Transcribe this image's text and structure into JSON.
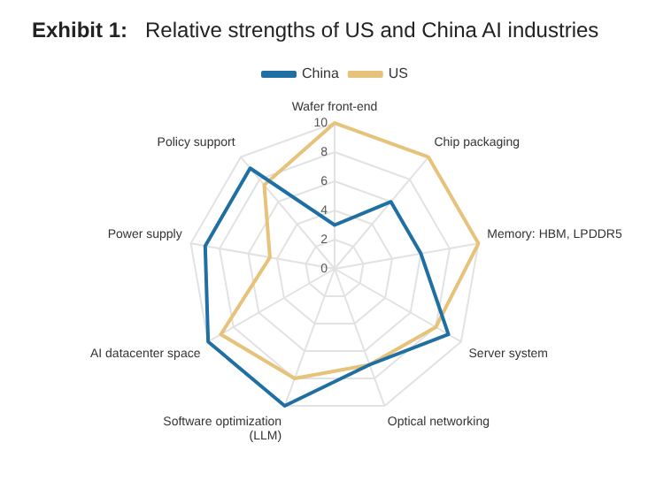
{
  "chart_data": {
    "type": "radar",
    "title": "Exhibit 1:   Relative strengths of US and China AI industries",
    "categories": [
      "Wafer front-end",
      "Chip packaging",
      "Memory: HBM, LPDDR5",
      "Server system",
      "Optical networking",
      "Software optimization (LLM)",
      "AI datacenter space",
      "Power supply",
      "Policy support"
    ],
    "series": [
      {
        "name": "China",
        "color": "#1f6fa3",
        "values": [
          3,
          6,
          6,
          9,
          7,
          10,
          10,
          9,
          9
        ]
      },
      {
        "name": "US",
        "color": "#e6c27a",
        "values": [
          10,
          10,
          10,
          8,
          7,
          8,
          9,
          4.5,
          7.5
        ]
      }
    ],
    "ylim": [
      0,
      10
    ],
    "yticks": [
      0,
      2,
      4,
      6,
      8,
      10
    ],
    "grid": true,
    "legend": "top",
    "marker": "none"
  }
}
